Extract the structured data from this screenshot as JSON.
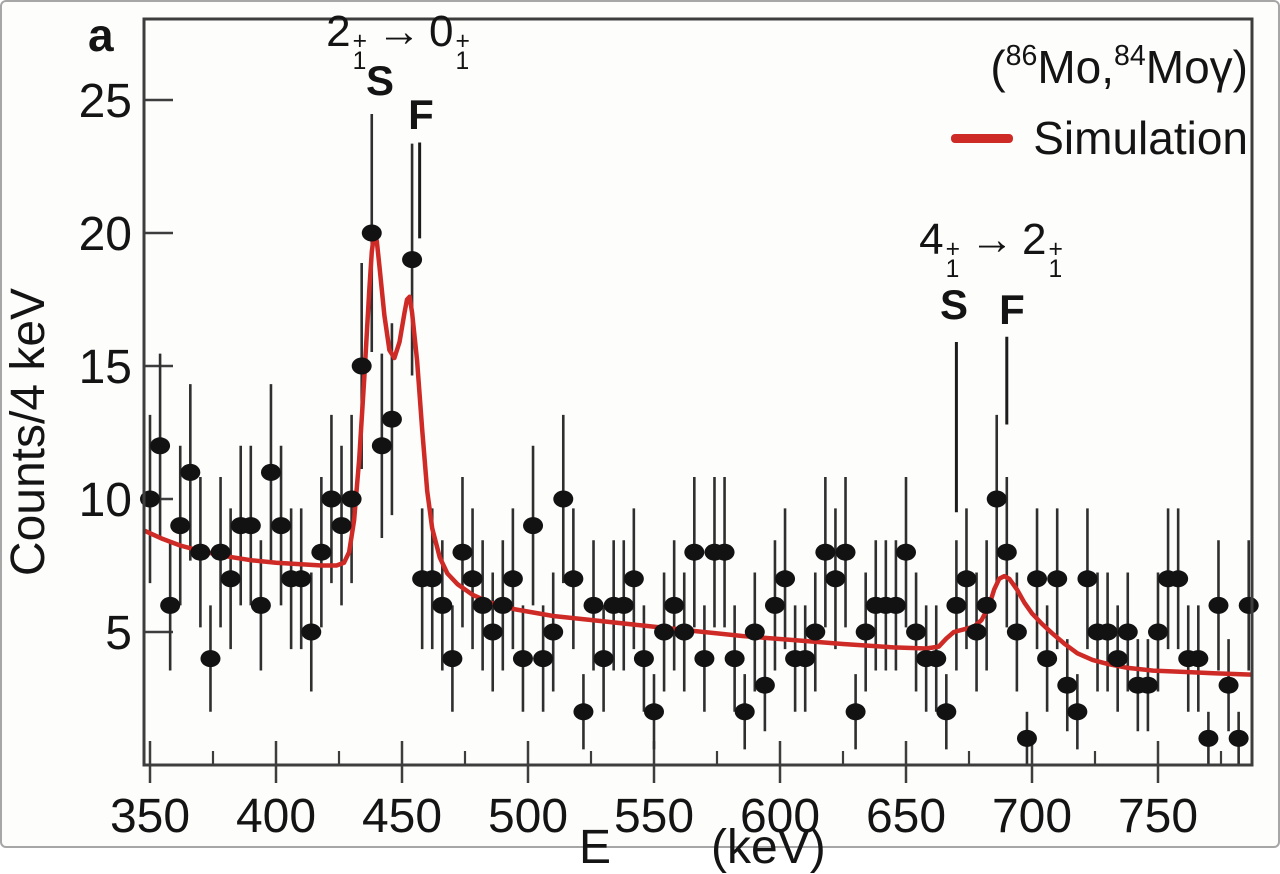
{
  "page": {
    "panel_label": "a"
  },
  "axes": {
    "ylabel": "Counts/4 keV",
    "xlabel_symbol": "E",
    "xlabel_unit": "(keV)"
  },
  "legend": {
    "reaction": {
      "open": "(",
      "mass1": "86",
      "elem1": "Mo,",
      "mass2": "84",
      "elem2": "Mo",
      "gamma": "γ",
      "close": ")"
    },
    "sim_label": "Simulation",
    "sim_color": "#ce2a26"
  },
  "transitions": {
    "t1": {
      "from_spin": "2",
      "from_sup": "+",
      "from_sub": "1",
      "arrow": "→",
      "to_spin": "0",
      "to_sup": "+",
      "to_sub": "1",
      "s": "S",
      "f": "F"
    },
    "t2": {
      "from_spin": "4",
      "from_sup": "+",
      "from_sub": "1",
      "arrow": "→",
      "to_spin": "2",
      "to_sup": "+",
      "to_sub": "1",
      "s": "S",
      "f": "F"
    }
  },
  "chart_data": {
    "type": "scatter",
    "subtype": "gamma-ray spectrum, data points with Poisson error bars plus simulation line",
    "xlabel": "E (keV)",
    "ylabel": "Counts/4 keV",
    "xlim": [
      347,
      788
    ],
    "ylim": [
      0,
      28
    ],
    "grid": false,
    "legend_position": "top-right",
    "x_start_keV": 350,
    "bin_width_keV": 4,
    "x_ticks_major": [
      350,
      400,
      450,
      500,
      550,
      600,
      650,
      700,
      750
    ],
    "x_ticks_minor": [
      375,
      425,
      475,
      525,
      575,
      625,
      675,
      725,
      775
    ],
    "y_ticks": [
      5,
      10,
      15,
      20,
      25
    ],
    "counts": [
      10,
      12,
      6,
      9,
      11,
      8,
      4,
      8,
      7,
      9,
      9,
      6,
      11,
      9,
      7,
      7,
      5,
      8,
      10,
      9,
      10,
      15,
      20,
      12,
      13,
      null,
      19,
      7,
      7,
      6,
      4,
      8,
      7,
      6,
      5,
      6,
      7,
      4,
      9,
      4,
      5,
      10,
      7,
      2,
      6,
      4,
      6,
      6,
      7,
      4,
      2,
      5,
      6,
      5,
      8,
      4,
      8,
      8,
      4,
      2,
      5,
      3,
      6,
      7,
      4,
      4,
      5,
      8,
      7,
      8,
      2,
      5,
      6,
      6,
      6,
      8,
      5,
      4,
      4,
      2,
      6,
      7,
      5,
      6,
      10,
      8,
      5,
      1,
      7,
      4,
      7,
      3,
      2,
      7,
      5,
      5,
      4,
      5,
      3,
      3,
      5,
      7,
      7,
      4,
      4,
      1,
      6,
      3,
      1,
      6
    ],
    "errors": "sqrt(N)",
    "series": [
      {
        "name": "Data",
        "style": "points+errorbars",
        "color": "#121212"
      },
      {
        "name": "Simulation",
        "style": "line",
        "color": "#ce2a26",
        "points": [
          [
            348,
            8.8
          ],
          [
            355,
            8.5
          ],
          [
            362,
            8.25
          ],
          [
            370,
            8.05
          ],
          [
            380,
            7.85
          ],
          [
            390,
            7.7
          ],
          [
            400,
            7.6
          ],
          [
            410,
            7.55
          ],
          [
            418,
            7.5
          ],
          [
            424,
            7.5
          ],
          [
            427,
            7.6
          ],
          [
            429,
            8.0
          ],
          [
            431,
            9.2
          ],
          [
            433,
            11.5
          ],
          [
            435,
            14.5
          ],
          [
            437,
            17.8
          ],
          [
            438,
            19.3
          ],
          [
            439,
            20.0
          ],
          [
            440,
            19.7
          ],
          [
            441,
            18.8
          ],
          [
            443,
            16.9
          ],
          [
            445,
            15.6
          ],
          [
            447,
            15.3
          ],
          [
            449,
            15.9
          ],
          [
            451,
            17.0
          ],
          [
            452,
            17.5
          ],
          [
            453,
            17.6
          ],
          [
            454,
            17.0
          ],
          [
            456,
            15.2
          ],
          [
            458,
            12.6
          ],
          [
            460,
            10.3
          ],
          [
            462,
            8.9
          ],
          [
            465,
            7.8
          ],
          [
            468,
            7.2
          ],
          [
            472,
            6.8
          ],
          [
            478,
            6.4
          ],
          [
            485,
            6.1
          ],
          [
            495,
            5.85
          ],
          [
            510,
            5.6
          ],
          [
            525,
            5.45
          ],
          [
            545,
            5.25
          ],
          [
            565,
            5.05
          ],
          [
            585,
            4.85
          ],
          [
            605,
            4.7
          ],
          [
            625,
            4.55
          ],
          [
            645,
            4.42
          ],
          [
            658,
            4.38
          ],
          [
            663,
            4.45
          ],
          [
            666,
            4.75
          ],
          [
            669,
            5.0
          ],
          [
            673,
            5.1
          ],
          [
            677,
            5.2
          ],
          [
            680,
            5.45
          ],
          [
            683,
            6.0
          ],
          [
            685,
            6.6
          ],
          [
            687,
            7.0
          ],
          [
            689,
            7.1
          ],
          [
            691,
            7.0
          ],
          [
            694,
            6.6
          ],
          [
            697,
            6.1
          ],
          [
            700,
            5.7
          ],
          [
            704,
            5.3
          ],
          [
            708,
            4.95
          ],
          [
            713,
            4.55
          ],
          [
            718,
            4.2
          ],
          [
            724,
            3.95
          ],
          [
            730,
            3.8
          ],
          [
            738,
            3.65
          ],
          [
            748,
            3.55
          ],
          [
            760,
            3.5
          ],
          [
            772,
            3.45
          ],
          [
            787,
            3.4
          ]
        ]
      }
    ],
    "marker_lines": [
      {
        "name": "t1-F-marker",
        "e_keV": 457,
        "c_from": 19.8,
        "c_to": 23.4
      },
      {
        "name": "t2-S-marker",
        "e_keV": 670,
        "c_from": 9.5,
        "c_to": 15.9
      },
      {
        "name": "t2-F-marker",
        "e_keV": 690,
        "c_from": 12.8,
        "c_to": 16.1
      }
    ],
    "annotations": [
      {
        "text": "2₁⁺ → 0₁⁺",
        "s_at_keV": 441,
        "f_at_keV": 457
      },
      {
        "text": "4₁⁺ → 2₁⁺",
        "s_at_keV": 670,
        "f_at_keV": 690
      }
    ]
  }
}
